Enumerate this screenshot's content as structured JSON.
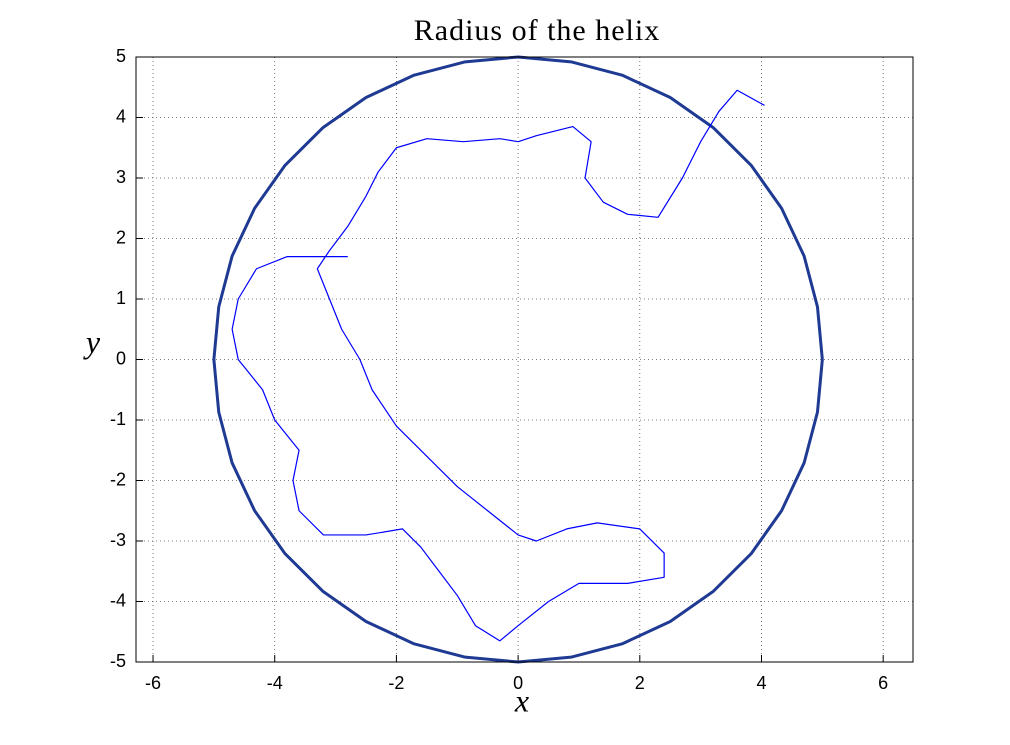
{
  "chart_data": {
    "type": "line",
    "title": "Radius of the helix",
    "xlabel": "x",
    "ylabel": "y",
    "xlim": [
      -6.28,
      6.49
    ],
    "ylim": [
      -5,
      5
    ],
    "xticks": [
      -6,
      -4,
      -2,
      0,
      2,
      4,
      6
    ],
    "yticks": [
      -5,
      -4,
      -3,
      -2,
      -1,
      0,
      1,
      2,
      3,
      4,
      5
    ],
    "grid": true,
    "series": [
      {
        "color": "#1f3a93",
        "x": [
          5,
          4.92,
          4.7,
          4.33,
          3.83,
          3.21,
          2.5,
          1.71,
          0.87,
          0,
          -0.87,
          -1.71,
          -2.5,
          -3.21,
          -3.83,
          -4.33,
          -4.7,
          -4.92,
          -5,
          -4.92,
          -4.7,
          -4.33,
          -3.83,
          -3.21,
          -2.5,
          -1.71,
          -0.87,
          0,
          0.87,
          1.71,
          2.5,
          3.21,
          3.83,
          4.33,
          4.7,
          4.92,
          5
        ],
        "y": [
          0,
          0.87,
          1.71,
          2.5,
          3.21,
          3.83,
          4.33,
          4.7,
          4.92,
          5,
          4.92,
          4.7,
          4.33,
          3.83,
          3.21,
          2.5,
          1.71,
          0.87,
          0,
          -0.87,
          -1.71,
          -2.5,
          -3.21,
          -3.83,
          -4.33,
          -4.7,
          -4.92,
          -5,
          -4.92,
          -4.7,
          -4.33,
          -3.83,
          -3.21,
          -2.5,
          -1.71,
          -0.87,
          0
        ]
      },
      {
        "color": "#0000ff",
        "x": [
          4.05,
          3.6,
          3.3,
          3.0,
          2.7,
          2.3,
          1.8,
          1.4,
          1.1,
          1.2,
          0.9,
          0.3,
          0,
          -0.3,
          -0.9,
          -1.5,
          -2.0,
          -2.3,
          -2.5,
          -2.8,
          -3.1,
          -3.3,
          -3.1,
          -2.9,
          -2.6,
          -2.4,
          -2.0,
          -1.5,
          -1.0,
          -0.5,
          0,
          0.3,
          0.8,
          1.3,
          2.0,
          2.4,
          2.4,
          1.8,
          1.0,
          0.5,
          0,
          -0.3,
          -0.7,
          -1.0,
          -1.3,
          -1.6,
          -1.9,
          -2.5,
          -3.2,
          -3.6,
          -3.7,
          -3.6,
          -4.0,
          -4.2,
          -4.6,
          -4.7,
          -4.6,
          -4.3,
          -3.8,
          -3.2,
          -2.8
        ],
        "y": [
          4.2,
          4.45,
          4.1,
          3.6,
          3.0,
          2.35,
          2.4,
          2.6,
          3.0,
          3.6,
          3.85,
          3.7,
          3.6,
          3.65,
          3.6,
          3.65,
          3.5,
          3.1,
          2.7,
          2.2,
          1.8,
          1.5,
          1.0,
          0.5,
          0,
          -0.5,
          -1.1,
          -1.6,
          -2.1,
          -2.5,
          -2.9,
          -3.0,
          -2.8,
          -2.7,
          -2.8,
          -3.2,
          -3.6,
          -3.7,
          -3.7,
          -4.0,
          -4.4,
          -4.65,
          -4.4,
          -3.9,
          -3.5,
          -3.1,
          -2.8,
          -2.9,
          -2.9,
          -2.5,
          -2.0,
          -1.5,
          -1.0,
          -0.5,
          0,
          0.5,
          1.0,
          1.5,
          1.7,
          1.7,
          1.7
        ]
      }
    ]
  }
}
